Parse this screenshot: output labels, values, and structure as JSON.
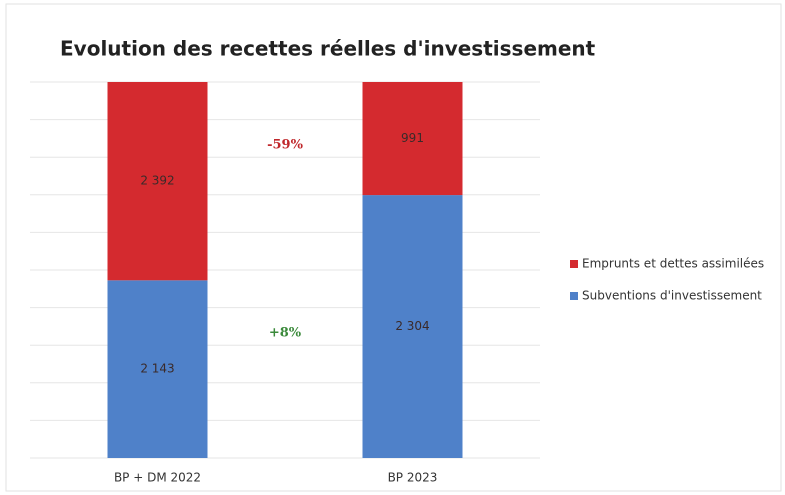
{
  "chart_data": {
    "type": "bar",
    "stacking": "percent",
    "title": "Evolution des recettes réelles d'investissement",
    "categories": [
      "BP + DM 2022",
      "BP 2023"
    ],
    "series": [
      {
        "name": "Subventions d'investissement",
        "color": "#4f81c9",
        "values": [
          2143,
          2304
        ],
        "value_labels": [
          "2 143",
          "2 304"
        ]
      },
      {
        "name": "Emprunts et dettes assimilées",
        "color": "#d42a2f",
        "values": [
          2392,
          991
        ],
        "value_labels": [
          "2 392",
          "991"
        ]
      }
    ],
    "annotations": [
      {
        "text": "-59%",
        "color": "#c0282c",
        "series": 1
      },
      {
        "text": "+8%",
        "color": "#3b8a3b",
        "series": 0
      }
    ],
    "ylim": [
      0,
      100
    ],
    "yticks": [
      0,
      10,
      20,
      30,
      40,
      50,
      60,
      70,
      80,
      90,
      100
    ],
    "grid": true,
    "legend": "right"
  }
}
